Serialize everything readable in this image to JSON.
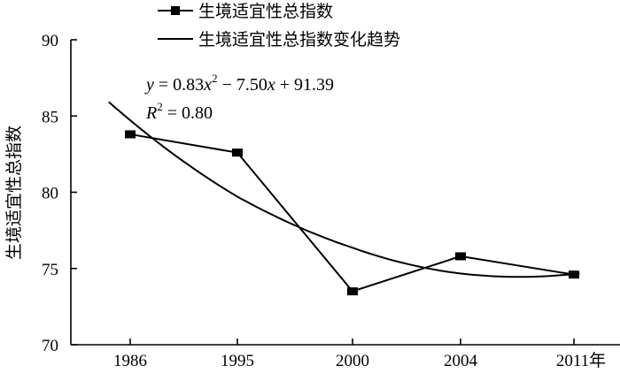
{
  "chart_data": {
    "type": "line",
    "x_unit": "年",
    "categories": [
      "1986",
      "1995",
      "2000",
      "2004",
      "2011"
    ],
    "ylabel": "生境适宜性总指数",
    "ylim": [
      70,
      90
    ],
    "yticks": [
      "70",
      "75",
      "80",
      "85",
      "90"
    ],
    "series": [
      {
        "name": "生境适宜性总指数",
        "marker": "square",
        "values": [
          83.8,
          82.6,
          73.5,
          75.8,
          74.6
        ]
      }
    ],
    "trend": {
      "name": "生境适宜性总指数变化趋势",
      "coefficients": {
        "a": 0.83,
        "b": -7.5,
        "c": 91.39
      },
      "x_start": 0.8,
      "x_end": 5.05
    },
    "equation": {
      "y_var": "y",
      "eq_sign": " = ",
      "a": "0.83",
      "x_var": "x",
      "sq": "2",
      "minus": " − ",
      "b": "7.50",
      "plus": " + ",
      "c": "91.39",
      "r_var": "R",
      "r_value": "0.80"
    },
    "legend_position": "top-center",
    "grid": false
  }
}
